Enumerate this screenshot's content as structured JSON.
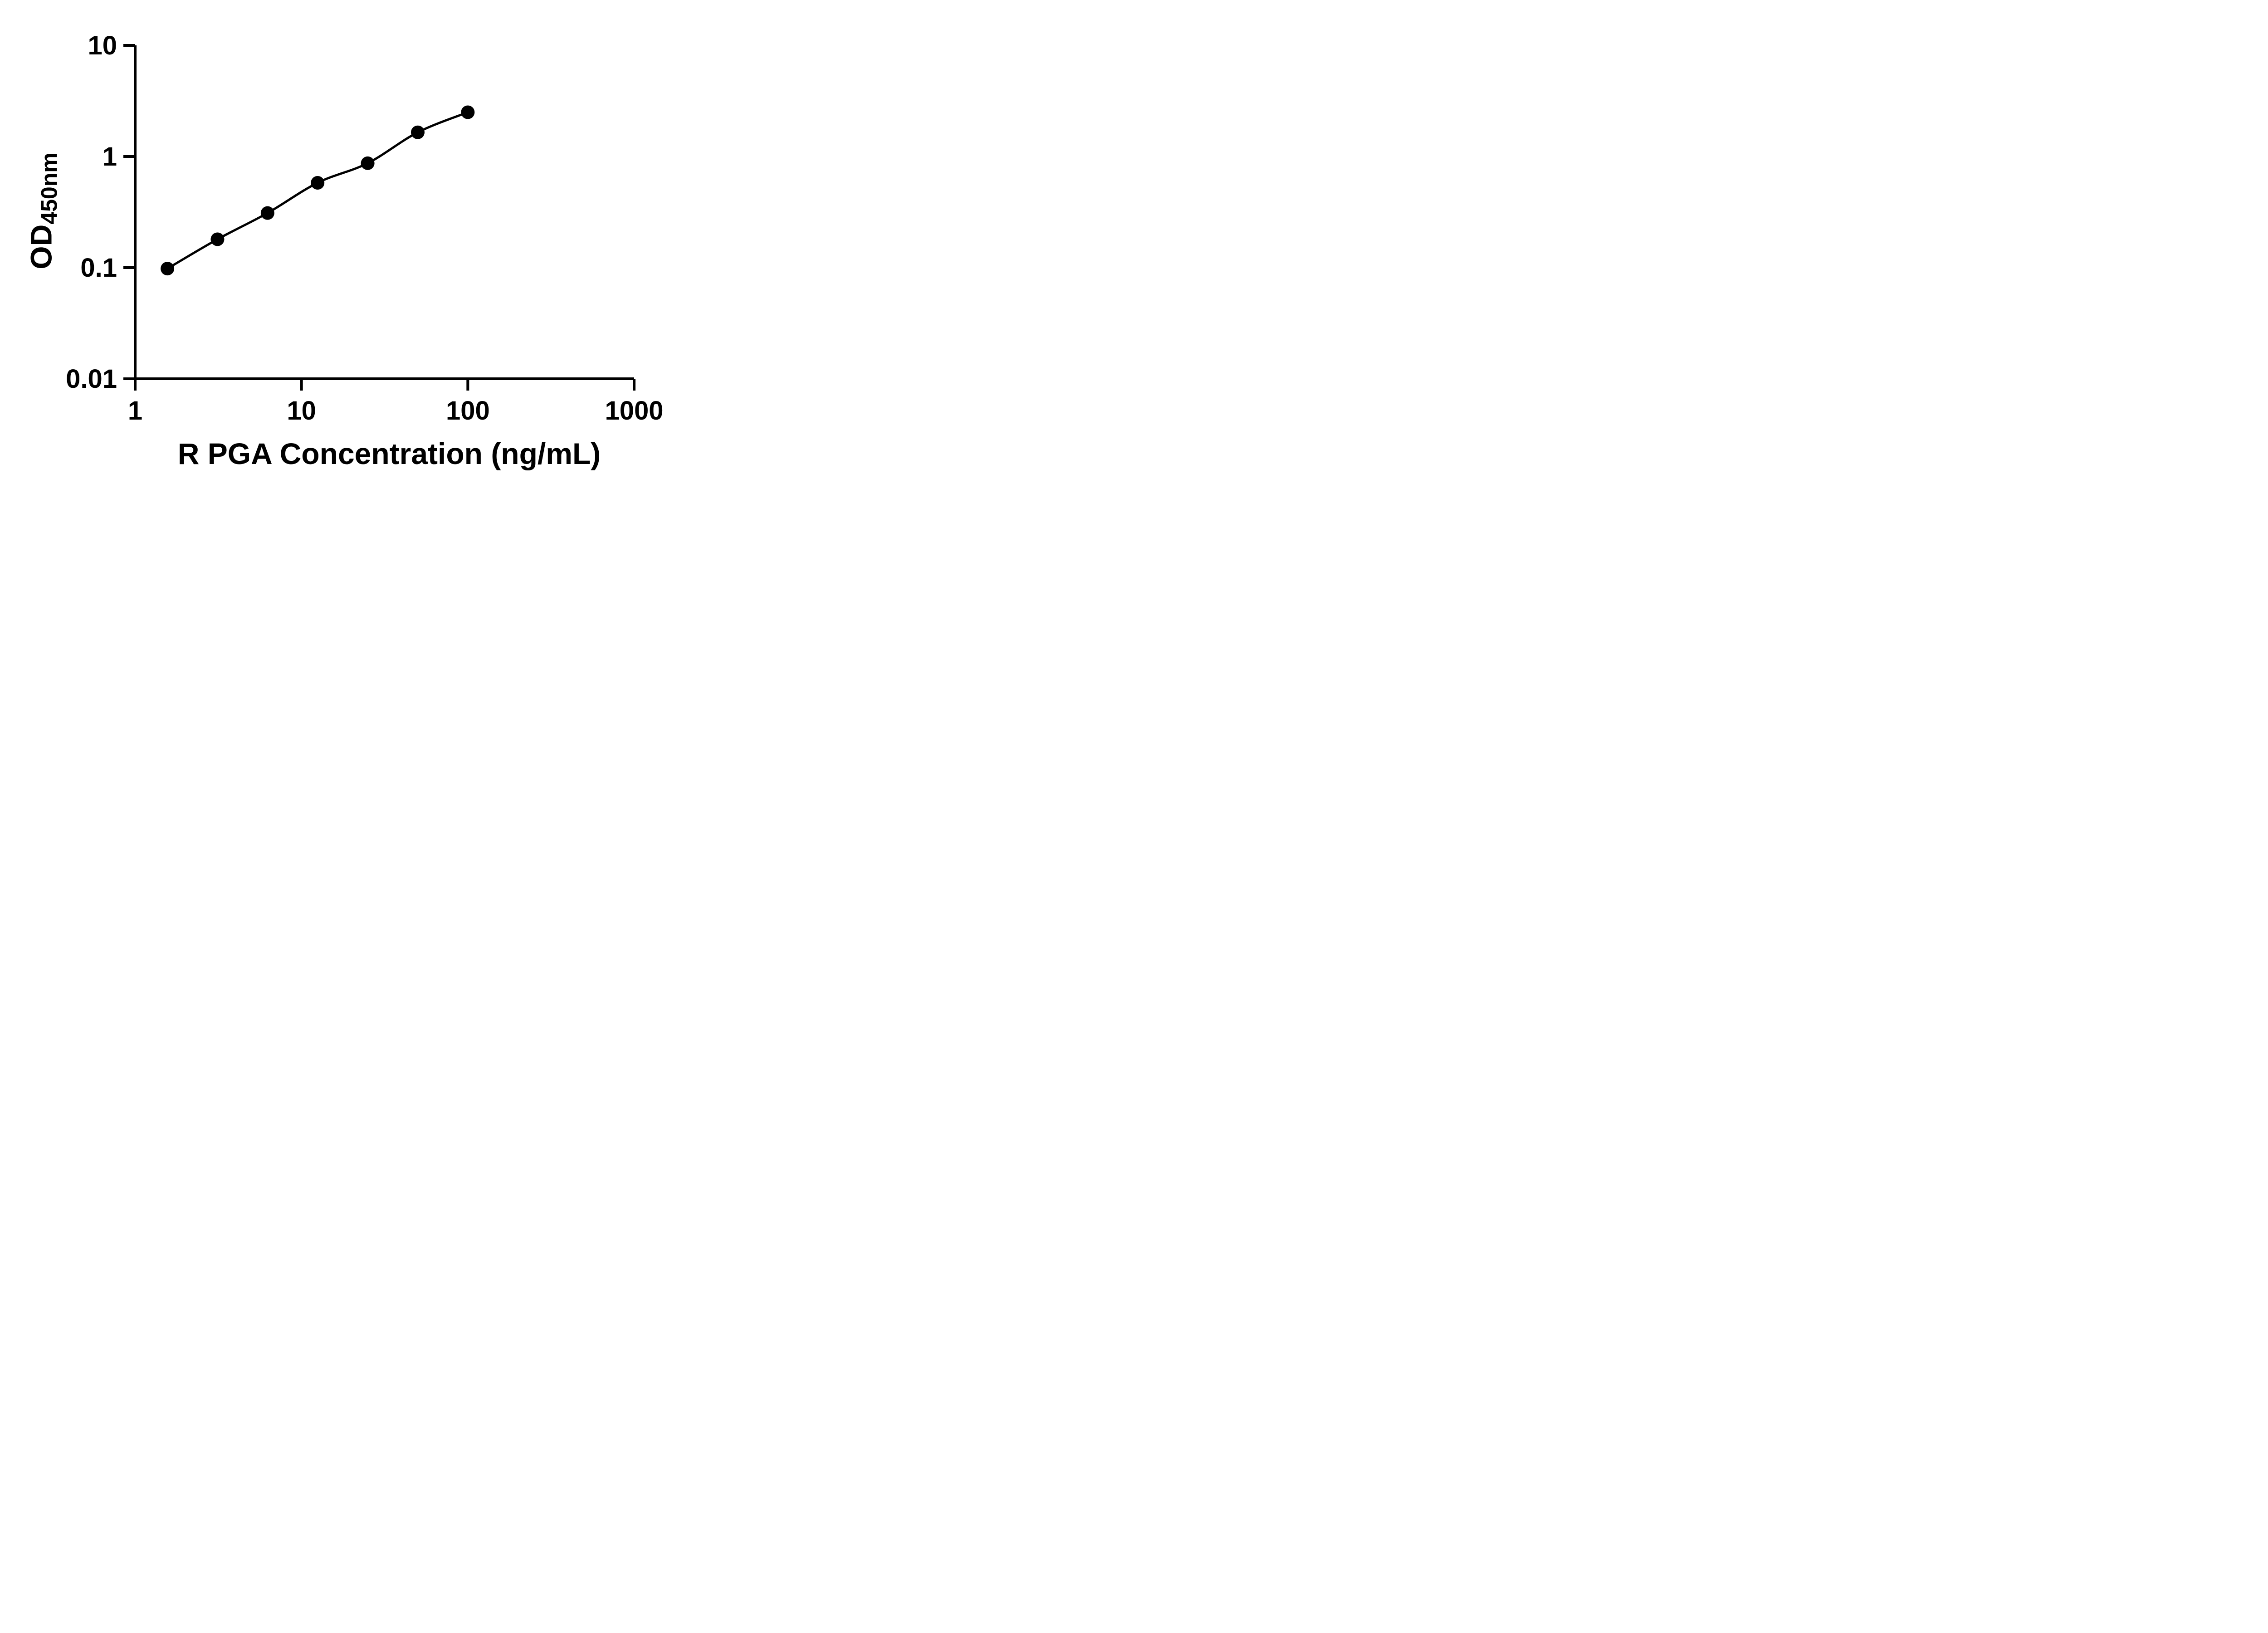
{
  "chart_data": {
    "type": "scatter",
    "subtype": "log-log standard curve with fitted line",
    "x": [
      1.5625,
      3.125,
      6.25,
      12.5,
      25,
      50,
      100
    ],
    "y": [
      0.098,
      0.18,
      0.31,
      0.58,
      0.87,
      1.65,
      2.5
    ],
    "title": "",
    "xlabel": "R PGA Concentration (ng/mL)",
    "ylabel": "OD",
    "ylabel_subscript": "450nm",
    "x_scale": "log10",
    "y_scale": "log10",
    "xlim": [
      1,
      1000
    ],
    "ylim": [
      0.01,
      10
    ],
    "x_ticks": [
      1,
      10,
      100,
      1000
    ],
    "x_tick_labels": [
      "1",
      "10",
      "100",
      "1000"
    ],
    "y_ticks": [
      0.01,
      0.1,
      1,
      10
    ],
    "y_tick_labels": [
      "0.01",
      "0.1",
      "1",
      "10"
    ],
    "grid": false,
    "legend": null,
    "marker_color": "#000000",
    "line_color": "#000000",
    "axis_color": "#000000",
    "background": "#ffffff"
  }
}
